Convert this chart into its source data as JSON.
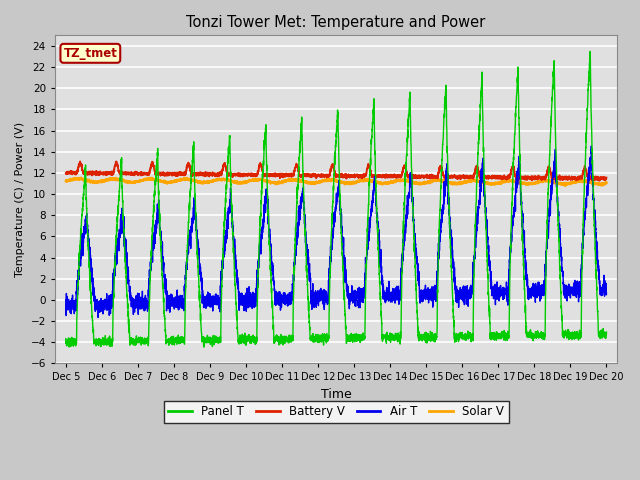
{
  "title": "Tonzi Tower Met: Temperature and Power",
  "xlabel": "Time",
  "ylabel": "Temperature (C) / Power (V)",
  "ylim": [
    -6,
    25
  ],
  "yticks": [
    -6,
    -4,
    -2,
    0,
    2,
    4,
    6,
    8,
    10,
    12,
    14,
    16,
    18,
    20,
    22,
    24
  ],
  "colors": {
    "panel_t": "#00CC00",
    "battery_v": "#DD2200",
    "air_t": "#0000EE",
    "solar_v": "#FFA500"
  },
  "fig_bg": "#C8C8C8",
  "axes_bg": "#E0E0E0",
  "grid_color": "#FFFFFF",
  "tz_label": "TZ_tmet",
  "tz_bg": "#FFFFCC",
  "tz_border": "#AA0000",
  "legend_labels": [
    "Panel T",
    "Battery V",
    "Air T",
    "Solar V"
  ],
  "start_day": 5,
  "end_day": 20,
  "n_points": 4320,
  "days": 15
}
